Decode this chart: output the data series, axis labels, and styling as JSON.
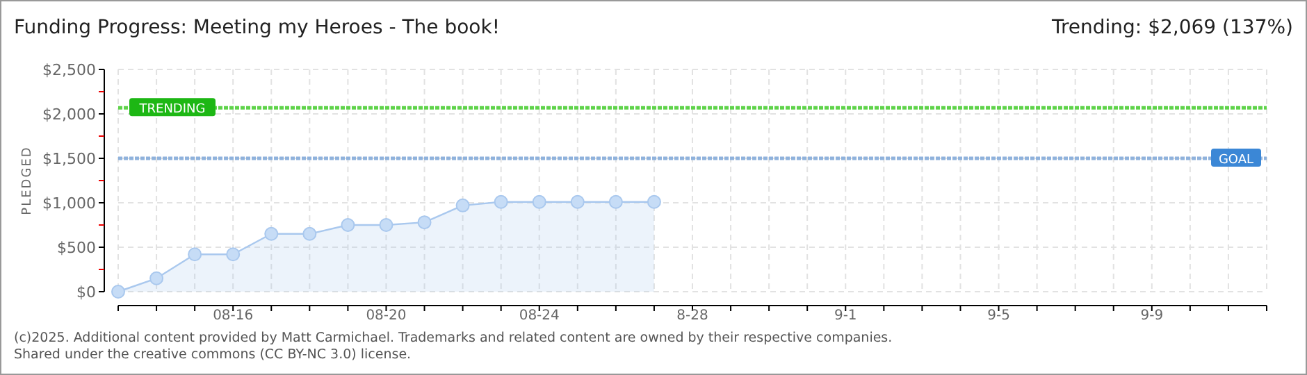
{
  "chart_data": {
    "type": "area",
    "title": "Funding Progress: Meeting my Heroes - The book!",
    "subtitle": "Trending:  $2,069 (137%)",
    "ylabel": "PLEDGED",
    "categories": [
      null,
      null,
      null,
      "08-16",
      null,
      null,
      null,
      "08-20",
      null,
      null,
      null,
      "08-24",
      null,
      null,
      null,
      "8-28",
      null,
      null,
      null,
      "9-1",
      null,
      null,
      null,
      "9-5",
      null,
      null,
      null,
      "9-9",
      null,
      null,
      null
    ],
    "series": [
      {
        "color": "#a9c8ee",
        "values": [
          0,
          150,
          420,
          420,
          650,
          650,
          750,
          750,
          780,
          970,
          1010,
          1010,
          1010,
          1010,
          1010,
          null,
          null,
          null,
          null,
          null,
          null,
          null,
          null,
          null,
          null,
          null,
          null,
          null,
          null,
          null,
          null
        ]
      }
    ],
    "ylim": [
      0,
      2500
    ],
    "yticks": [
      {
        "value": 0,
        "label": "$0"
      },
      {
        "value": 250,
        "label": null
      },
      {
        "value": 500,
        "label": "$500"
      },
      {
        "value": 750,
        "label": null
      },
      {
        "value": 1000,
        "label": "$1,000"
      },
      {
        "value": 1250,
        "label": null
      },
      {
        "value": 1500,
        "label": "$1,500"
      },
      {
        "value": 1750,
        "label": null
      },
      {
        "value": 2000,
        "label": "$2,000"
      },
      {
        "value": 2250,
        "label": null
      },
      {
        "value": 2500,
        "label": "$2,500"
      }
    ],
    "grid": true,
    "marker": "circle",
    "ref_lines": [
      {
        "axis": "y",
        "value": 2069,
        "label": "TRENDING",
        "color": "#5fd34a",
        "line_style": "dotted"
      },
      {
        "axis": "y",
        "value": 1500,
        "label": "GOAL",
        "color": "#8fb2dc",
        "line_style": "dotted"
      }
    ],
    "annotations": [
      "(c)2025. Additional content provided by Matt Carmichael. Trademarks and related content are owned by their respective companies.",
      "Shared under the creative commons (CC BY-NC 3.0) license."
    ]
  }
}
